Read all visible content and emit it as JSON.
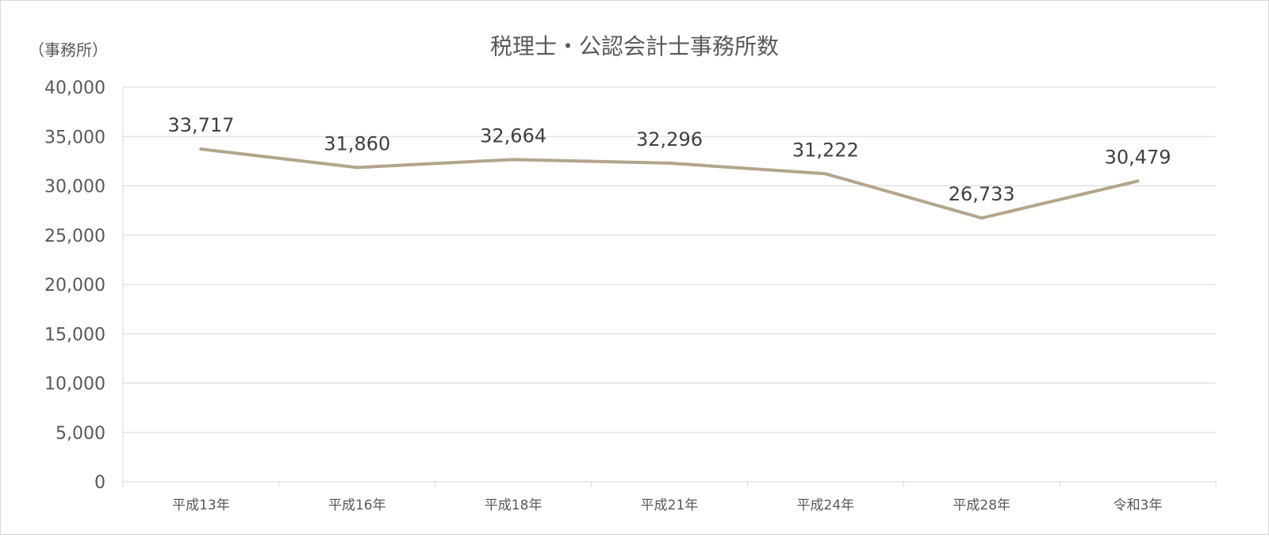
{
  "chart_data": {
    "type": "line",
    "title": "税理士・公認会計士事務所数",
    "ylabel": "（事務所）",
    "xlabel": "",
    "categories": [
      "平成13年",
      "平成16年",
      "平成18年",
      "平成21年",
      "平成24年",
      "平成28年",
      "令和3年"
    ],
    "series": [
      {
        "values": [
          33717,
          31860,
          32664,
          32296,
          31222,
          26733,
          30479
        ],
        "labels": [
          "33,717",
          "31,860",
          "32,664",
          "32,296",
          "31,222",
          "26,733",
          "30,479"
        ],
        "color": "#b3a58c"
      }
    ],
    "ylim": [
      0,
      40000
    ],
    "yticks": [
      0,
      5000,
      10000,
      15000,
      20000,
      25000,
      30000,
      35000,
      40000
    ],
    "ytick_labels": [
      "0",
      "5,000",
      "10,000",
      "15,000",
      "20,000",
      "25,000",
      "30,000",
      "35,000",
      "40,000"
    ],
    "grid": true,
    "legend": "none",
    "colors": {
      "gridline": "#d9d9d9",
      "text": "#595959",
      "label": "#404040"
    }
  }
}
